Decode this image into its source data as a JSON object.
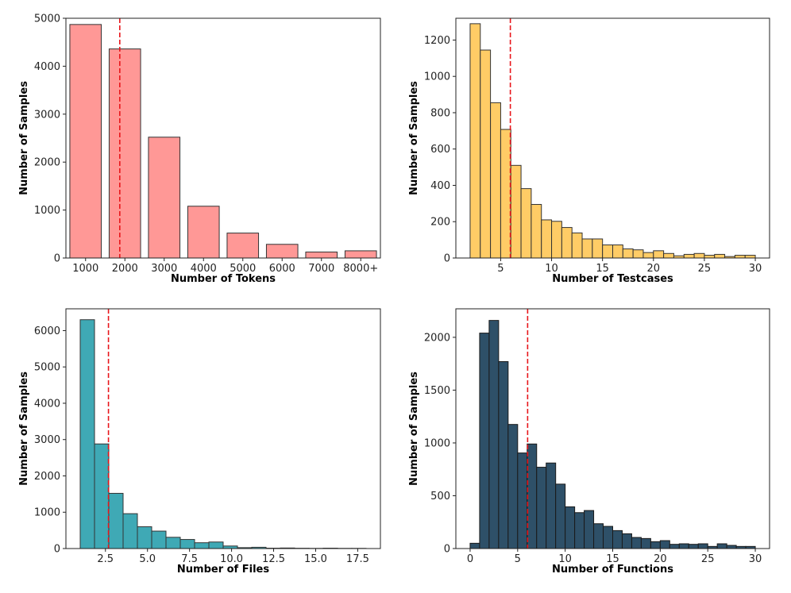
{
  "chart_data": [
    {
      "id": "tokens",
      "type": "bar",
      "color": "#ff9896",
      "edge_color": "#333333",
      "xlabel": "Number of Tokens",
      "ylabel": "Number of Samples",
      "categories": [
        "1000",
        "2000",
        "3000",
        "4000",
        "5000",
        "6000",
        "7000",
        "8000+"
      ],
      "values": [
        4870,
        4360,
        2520,
        1080,
        520,
        285,
        125,
        150
      ],
      "xlim": [
        0.5,
        8.5
      ],
      "ylim": [
        0,
        5000
      ],
      "xticks": [
        1,
        2,
        3,
        4,
        5,
        6,
        7,
        8
      ],
      "yticks": [
        0,
        1000,
        2000,
        3000,
        4000,
        5000
      ],
      "mean_line": 1.87,
      "grid": false
    },
    {
      "id": "testcases",
      "type": "histogram",
      "color": "#ffcc66",
      "edge_color": "#333333",
      "xlabel": "Number of Testcases",
      "ylabel": "Number of Samples",
      "bins_start": 2,
      "bin_width": 1,
      "values": [
        1290,
        1145,
        855,
        708,
        510,
        382,
        295,
        210,
        202,
        168,
        138,
        105,
        105,
        72,
        72,
        50,
        45,
        30,
        40,
        25,
        12,
        20,
        25,
        15,
        20,
        8,
        15,
        15
      ],
      "xlim": [
        0.6,
        31.4
      ],
      "ylim": [
        0,
        1320
      ],
      "xticks": [
        5,
        10,
        15,
        20,
        25,
        30
      ],
      "xtick_labels": [
        "5",
        "10",
        "15",
        "20",
        "25",
        "30"
      ],
      "yticks": [
        0,
        200,
        400,
        600,
        800,
        1000,
        1200
      ],
      "mean_line": 5.95,
      "grid": false
    },
    {
      "id": "files",
      "type": "histogram",
      "color": "#3fa9b5",
      "edge_color": "#333333",
      "xlabel": "Number of Files",
      "ylabel": "Number of Samples",
      "bins_start": 1,
      "bin_width": 0.85,
      "values": [
        6300,
        2880,
        1520,
        960,
        600,
        480,
        310,
        250,
        160,
        180,
        70,
        25,
        35,
        10,
        15,
        8,
        5,
        10,
        5,
        5
      ],
      "xlim": [
        0.15,
        18.85
      ],
      "ylim": [
        0,
        6600
      ],
      "xticks": [
        2.5,
        5,
        7.5,
        10,
        12.5,
        15,
        17.5
      ],
      "xtick_labels": [
        "2.5",
        "5.0",
        "7.5",
        "10.0",
        "12.5",
        "15.0",
        "17.5"
      ],
      "yticks": [
        0,
        1000,
        2000,
        3000,
        4000,
        5000,
        6000
      ],
      "mean_line": 2.68,
      "grid": false
    },
    {
      "id": "functions",
      "type": "histogram",
      "color": "#2e5068",
      "edge_color": "#1a1a1a",
      "xlabel": "Number of Functions",
      "ylabel": "Number of Samples",
      "bins_start": 0,
      "bin_width": 1,
      "values": [
        50,
        2040,
        2160,
        1770,
        1175,
        905,
        990,
        770,
        810,
        610,
        395,
        340,
        360,
        235,
        210,
        170,
        140,
        105,
        95,
        65,
        75,
        40,
        45,
        40,
        45,
        20,
        45,
        30,
        20,
        20
      ],
      "xlim": [
        -1.5,
        31.5
      ],
      "ylim": [
        0,
        2270
      ],
      "xticks": [
        0,
        5,
        10,
        15,
        20,
        25,
        30
      ],
      "xtick_labels": [
        "0",
        "5",
        "10",
        "15",
        "20",
        "25",
        "30"
      ],
      "yticks": [
        0,
        500,
        1000,
        1500,
        2000
      ],
      "mean_line": 6.05,
      "grid": false
    }
  ]
}
